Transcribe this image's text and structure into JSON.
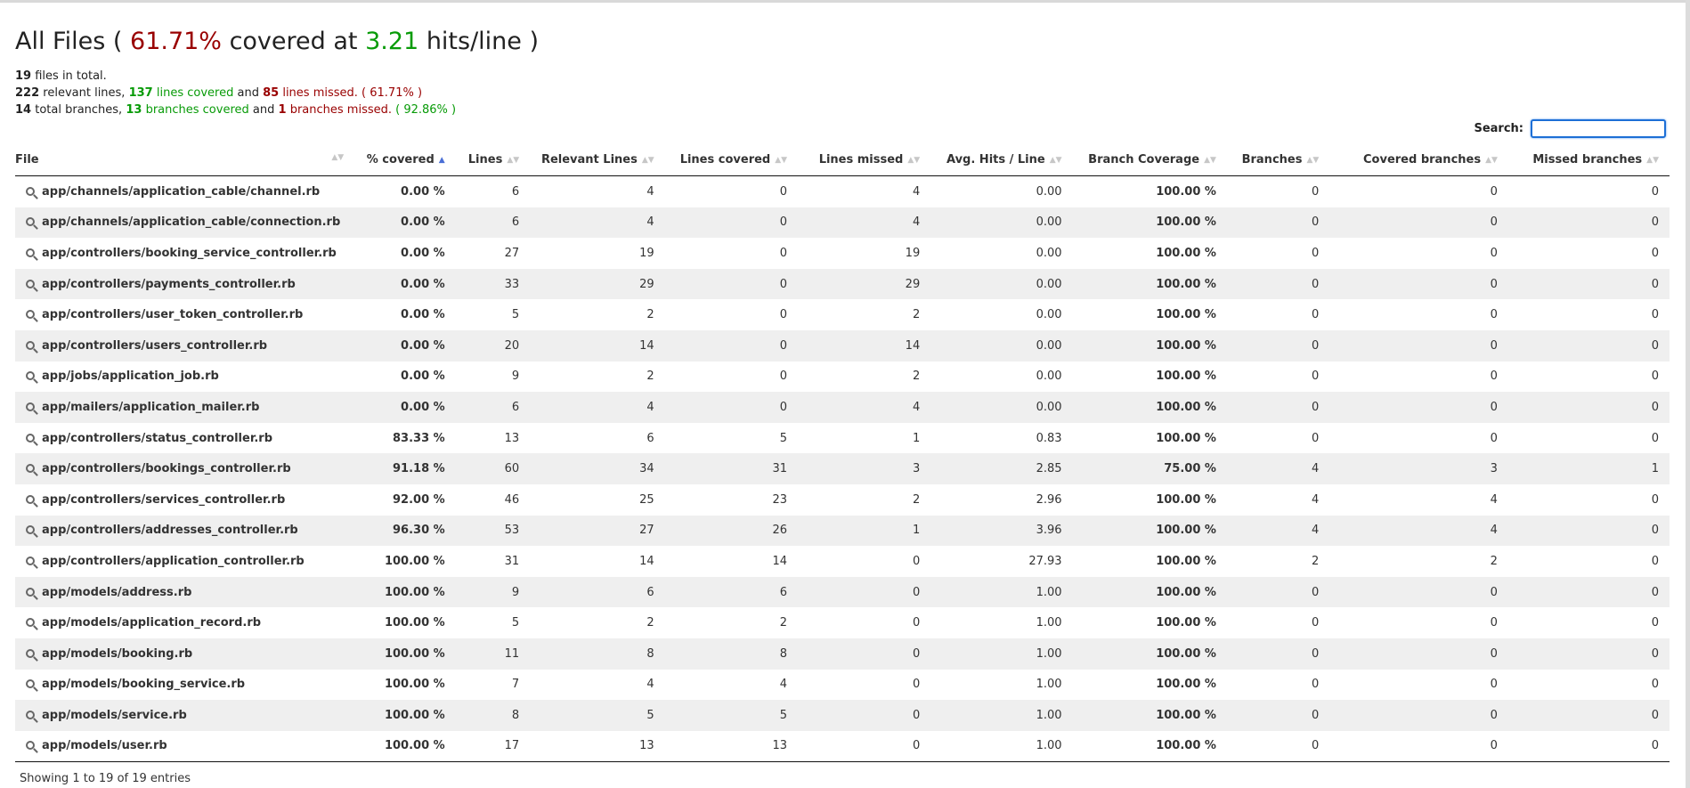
{
  "header": {
    "title_prefix": "All Files (",
    "covered_percent": "61.71%",
    "title_mid": "covered at",
    "hits_per_line": "3.21",
    "title_suffix": "hits/line )"
  },
  "summary": {
    "files_count": "19",
    "files_text": "files in total.",
    "relevant_lines": "222",
    "relevant_text": "relevant lines,",
    "lines_covered": "137",
    "lines_covered_text": "lines covered",
    "and1": "and",
    "lines_missed": "85",
    "lines_missed_text": "lines missed.",
    "lines_pct": "( 61.71% )",
    "total_branches": "14",
    "branches_text": "total branches,",
    "branches_covered": "13",
    "branches_covered_text": "branches covered",
    "and2": "and",
    "branches_missed": "1",
    "branches_missed_text": "branches missed.",
    "branches_pct": "( 92.86% )"
  },
  "search": {
    "label": "Search:",
    "value": ""
  },
  "table": {
    "columns": [
      "File",
      "% covered",
      "Lines",
      "Relevant Lines",
      "Lines covered",
      "Lines missed",
      "Avg. Hits / Line",
      "Branch Coverage",
      "Branches",
      "Covered branches",
      "Missed branches"
    ],
    "rows": [
      {
        "file": "app/channels/application_cable/channel.rb",
        "pct": "0.00 %",
        "pct_color": "red",
        "lines": "6",
        "relevant": "4",
        "covered": "0",
        "missed": "4",
        "avg": "0.00",
        "branch_cov": "100.00 %",
        "branch_color": "green",
        "branches": "0",
        "cov_branches": "0",
        "missed_branches": "0"
      },
      {
        "file": "app/channels/application_cable/connection.rb",
        "pct": "0.00 %",
        "pct_color": "red",
        "lines": "6",
        "relevant": "4",
        "covered": "0",
        "missed": "4",
        "avg": "0.00",
        "branch_cov": "100.00 %",
        "branch_color": "green",
        "branches": "0",
        "cov_branches": "0",
        "missed_branches": "0"
      },
      {
        "file": "app/controllers/booking_service_controller.rb",
        "pct": "0.00 %",
        "pct_color": "red",
        "lines": "27",
        "relevant": "19",
        "covered": "0",
        "missed": "19",
        "avg": "0.00",
        "branch_cov": "100.00 %",
        "branch_color": "green",
        "branches": "0",
        "cov_branches": "0",
        "missed_branches": "0"
      },
      {
        "file": "app/controllers/payments_controller.rb",
        "pct": "0.00 %",
        "pct_color": "red",
        "lines": "33",
        "relevant": "29",
        "covered": "0",
        "missed": "29",
        "avg": "0.00",
        "branch_cov": "100.00 %",
        "branch_color": "green",
        "branches": "0",
        "cov_branches": "0",
        "missed_branches": "0"
      },
      {
        "file": "app/controllers/user_token_controller.rb",
        "pct": "0.00 %",
        "pct_color": "red",
        "lines": "5",
        "relevant": "2",
        "covered": "0",
        "missed": "2",
        "avg": "0.00",
        "branch_cov": "100.00 %",
        "branch_color": "green",
        "branches": "0",
        "cov_branches": "0",
        "missed_branches": "0"
      },
      {
        "file": "app/controllers/users_controller.rb",
        "pct": "0.00 %",
        "pct_color": "red",
        "lines": "20",
        "relevant": "14",
        "covered": "0",
        "missed": "14",
        "avg": "0.00",
        "branch_cov": "100.00 %",
        "branch_color": "green",
        "branches": "0",
        "cov_branches": "0",
        "missed_branches": "0"
      },
      {
        "file": "app/jobs/application_job.rb",
        "pct": "0.00 %",
        "pct_color": "red",
        "lines": "9",
        "relevant": "2",
        "covered": "0",
        "missed": "2",
        "avg": "0.00",
        "branch_cov": "100.00 %",
        "branch_color": "green",
        "branches": "0",
        "cov_branches": "0",
        "missed_branches": "0"
      },
      {
        "file": "app/mailers/application_mailer.rb",
        "pct": "0.00 %",
        "pct_color": "red",
        "lines": "6",
        "relevant": "4",
        "covered": "0",
        "missed": "4",
        "avg": "0.00",
        "branch_cov": "100.00 %",
        "branch_color": "green",
        "branches": "0",
        "cov_branches": "0",
        "missed_branches": "0"
      },
      {
        "file": "app/controllers/status_controller.rb",
        "pct": "83.33 %",
        "pct_color": "orange",
        "lines": "13",
        "relevant": "6",
        "covered": "5",
        "missed": "1",
        "avg": "0.83",
        "branch_cov": "100.00 %",
        "branch_color": "green",
        "branches": "0",
        "cov_branches": "0",
        "missed_branches": "0"
      },
      {
        "file": "app/controllers/bookings_controller.rb",
        "pct": "91.18 %",
        "pct_color": "green",
        "lines": "60",
        "relevant": "34",
        "covered": "31",
        "missed": "3",
        "avg": "2.85",
        "branch_cov": "75.00 %",
        "branch_color": "red",
        "branches": "4",
        "cov_branches": "3",
        "missed_branches": "1"
      },
      {
        "file": "app/controllers/services_controller.rb",
        "pct": "92.00 %",
        "pct_color": "green",
        "lines": "46",
        "relevant": "25",
        "covered": "23",
        "missed": "2",
        "avg": "2.96",
        "branch_cov": "100.00 %",
        "branch_color": "green",
        "branches": "4",
        "cov_branches": "4",
        "missed_branches": "0"
      },
      {
        "file": "app/controllers/addresses_controller.rb",
        "pct": "96.30 %",
        "pct_color": "green",
        "lines": "53",
        "relevant": "27",
        "covered": "26",
        "missed": "1",
        "avg": "3.96",
        "branch_cov": "100.00 %",
        "branch_color": "green",
        "branches": "4",
        "cov_branches": "4",
        "missed_branches": "0"
      },
      {
        "file": "app/controllers/application_controller.rb",
        "pct": "100.00 %",
        "pct_color": "green",
        "lines": "31",
        "relevant": "14",
        "covered": "14",
        "missed": "0",
        "avg": "27.93",
        "branch_cov": "100.00 %",
        "branch_color": "green",
        "branches": "2",
        "cov_branches": "2",
        "missed_branches": "0"
      },
      {
        "file": "app/models/address.rb",
        "pct": "100.00 %",
        "pct_color": "green",
        "lines": "9",
        "relevant": "6",
        "covered": "6",
        "missed": "0",
        "avg": "1.00",
        "branch_cov": "100.00 %",
        "branch_color": "green",
        "branches": "0",
        "cov_branches": "0",
        "missed_branches": "0"
      },
      {
        "file": "app/models/application_record.rb",
        "pct": "100.00 %",
        "pct_color": "green",
        "lines": "5",
        "relevant": "2",
        "covered": "2",
        "missed": "0",
        "avg": "1.00",
        "branch_cov": "100.00 %",
        "branch_color": "green",
        "branches": "0",
        "cov_branches": "0",
        "missed_branches": "0"
      },
      {
        "file": "app/models/booking.rb",
        "pct": "100.00 %",
        "pct_color": "green",
        "lines": "11",
        "relevant": "8",
        "covered": "8",
        "missed": "0",
        "avg": "1.00",
        "branch_cov": "100.00 %",
        "branch_color": "green",
        "branches": "0",
        "cov_branches": "0",
        "missed_branches": "0"
      },
      {
        "file": "app/models/booking_service.rb",
        "pct": "100.00 %",
        "pct_color": "green",
        "lines": "7",
        "relevant": "4",
        "covered": "4",
        "missed": "0",
        "avg": "1.00",
        "branch_cov": "100.00 %",
        "branch_color": "green",
        "branches": "0",
        "cov_branches": "0",
        "missed_branches": "0"
      },
      {
        "file": "app/models/service.rb",
        "pct": "100.00 %",
        "pct_color": "green",
        "lines": "8",
        "relevant": "5",
        "covered": "5",
        "missed": "0",
        "avg": "1.00",
        "branch_cov": "100.00 %",
        "branch_color": "green",
        "branches": "0",
        "cov_branches": "0",
        "missed_branches": "0"
      },
      {
        "file": "app/models/user.rb",
        "pct": "100.00 %",
        "pct_color": "green",
        "lines": "17",
        "relevant": "13",
        "covered": "13",
        "missed": "0",
        "avg": "1.00",
        "branch_cov": "100.00 %",
        "branch_color": "green",
        "branches": "0",
        "cov_branches": "0",
        "missed_branches": "0"
      }
    ]
  },
  "footer": {
    "info": "Showing 1 to 19 of 19 entries"
  },
  "colors": {
    "red": "#990000",
    "green": "#089b08",
    "orange": "#dd9b06",
    "focus_blue": "#1d6fd6"
  }
}
